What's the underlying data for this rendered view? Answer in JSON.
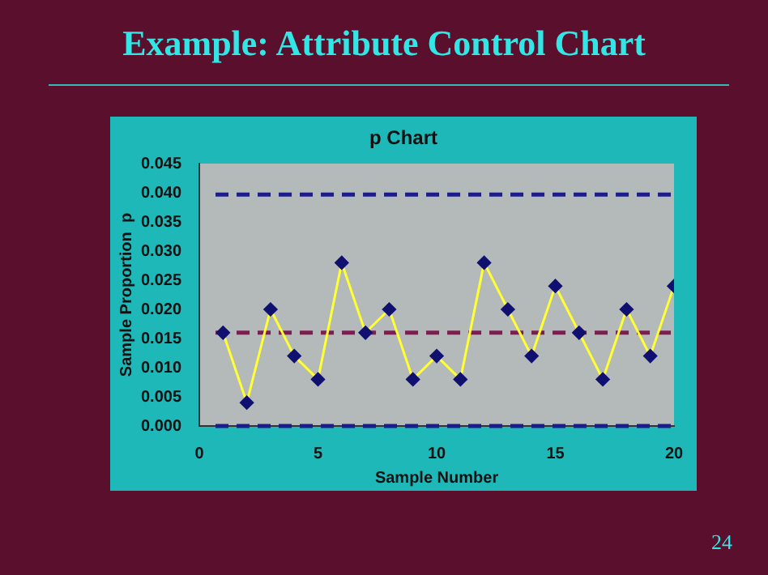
{
  "chart_data": {
    "type": "line",
    "title": "Example:  Attribute Control Chart",
    "subtitle": "p Chart",
    "xlabel": "Sample Number",
    "ylabel": "Sample Proportion  p",
    "x": [
      1,
      2,
      3,
      4,
      5,
      6,
      7,
      8,
      9,
      10,
      11,
      12,
      13,
      14,
      15,
      16,
      17,
      18,
      19,
      20
    ],
    "series": [
      {
        "color": "#ffff33",
        "values": [
          0.016,
          0.004,
          0.02,
          0.012,
          0.008,
          0.028,
          0.016,
          0.02,
          0.008,
          0.012,
          0.008,
          0.028,
          0.02,
          0.012,
          0.024,
          0.016,
          0.008,
          0.02,
          0.012,
          0.024
        ]
      }
    ],
    "xlim": [
      0,
      20
    ],
    "xticks": [
      0,
      5,
      10,
      15,
      20
    ],
    "ylim": [
      0,
      0.045
    ],
    "yticks": [
      {
        "value": 0,
        "label": "0.000"
      },
      {
        "value": 0.005,
        "label": "0.005"
      },
      {
        "value": 0.01,
        "label": "0.010"
      },
      {
        "value": 0.015,
        "label": "0.015"
      },
      {
        "value": 0.02,
        "label": "0.020"
      },
      {
        "value": 0.025,
        "label": "0.025"
      },
      {
        "value": 0.03,
        "label": "0.030"
      },
      {
        "value": 0.035,
        "label": "0.035"
      },
      {
        "value": 0.04,
        "label": "0.040"
      },
      {
        "value": 0.045,
        "label": "0.045"
      }
    ],
    "ref_lines": [
      {
        "axis": "y",
        "value": 0.0397,
        "color": "#1c1c8a",
        "line_style": "dashed"
      },
      {
        "axis": "y",
        "value": 0.016,
        "color": "#7a2050",
        "line_style": "dashed"
      },
      {
        "axis": "y",
        "value": 0,
        "color": "#1c1c8a",
        "line_style": "dashed"
      }
    ],
    "marker": "diamond",
    "grid": false,
    "legend": false,
    "annotations": [
      "24"
    ]
  }
}
